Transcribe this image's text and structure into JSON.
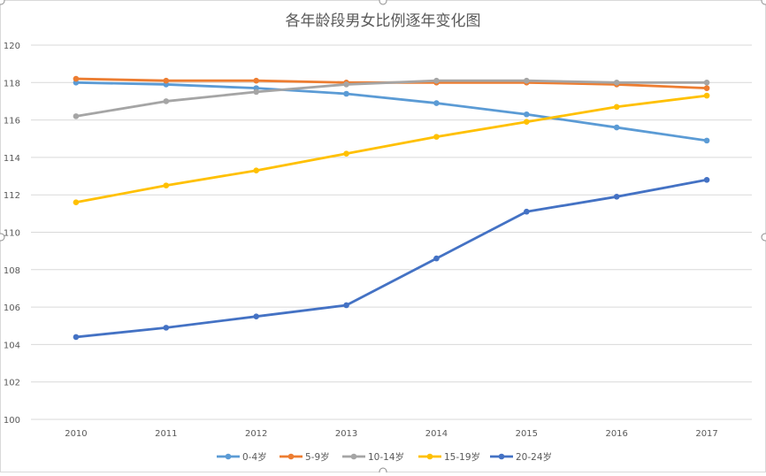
{
  "chart_data": {
    "type": "line",
    "title": "各年龄段男女比例逐年变化图",
    "xlabel": "",
    "ylabel": "",
    "categories": [
      "2010",
      "2011",
      "2012",
      "2013",
      "2014",
      "2015",
      "2016",
      "2017"
    ],
    "ylim": [
      100,
      120
    ],
    "yticks": [
      "100",
      "102",
      "104",
      "106",
      "108",
      "110",
      "112",
      "114",
      "116",
      "118",
      "120"
    ],
    "grid": true,
    "legend": "bottom",
    "series": [
      {
        "name": "0-4岁",
        "color": "#5B9BD5",
        "values": [
          118.0,
          117.9,
          117.7,
          117.4,
          116.9,
          116.3,
          115.6,
          114.9
        ]
      },
      {
        "name": "5-9岁",
        "color": "#ED7D31",
        "values": [
          118.2,
          118.1,
          118.1,
          118.0,
          118.0,
          118.0,
          117.9,
          117.7
        ]
      },
      {
        "name": "10-14岁",
        "color": "#A5A5A5",
        "values": [
          116.2,
          117.0,
          117.5,
          117.9,
          118.1,
          118.1,
          118.0,
          118.0
        ]
      },
      {
        "name": "15-19岁",
        "color": "#FFC000",
        "values": [
          111.6,
          112.5,
          113.3,
          114.2,
          115.1,
          115.9,
          116.7,
          117.3
        ]
      },
      {
        "name": "20-24岁",
        "color": "#4472C4",
        "values": [
          104.4,
          104.9,
          105.5,
          106.1,
          108.6,
          111.1,
          111.9,
          112.8
        ]
      }
    ]
  }
}
